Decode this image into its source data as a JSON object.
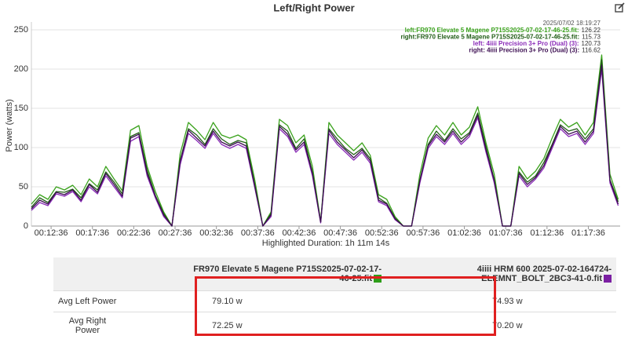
{
  "chart_data": {
    "type": "line",
    "title": "Left/Right Power",
    "y_label": "Power (watts)",
    "x_label": "Highlighted Duration: 1h 11m 14s",
    "tooltip_time": "2025/07/02 18:19:27",
    "x": [
      613,
      673,
      733,
      793,
      853,
      913,
      973,
      1033,
      1093,
      1153,
      1213,
      1273,
      1333,
      1393,
      1453,
      1513,
      1573,
      1633,
      1693,
      1753,
      1813,
      1873,
      1933,
      1993,
      2053,
      2113,
      2173,
      2233,
      2293,
      2353,
      2413,
      2473,
      2533,
      2593,
      2653,
      2713,
      2773,
      2833,
      2893,
      2953,
      3013,
      3073,
      3133,
      3193,
      3253,
      3313,
      3373,
      3433,
      3493,
      3553,
      3613,
      3673,
      3733,
      3793,
      3853,
      3913,
      3973,
      4033,
      4093,
      4153,
      4213,
      4273,
      4333,
      4393,
      4453,
      4513,
      4573,
      4633,
      4693,
      4753,
      4813,
      4873
    ],
    "series": [
      {
        "name": "left:FR970 Elevate 5 Magene P715S2025-07-02-17-46-25.fit:",
        "tooltip_value": 126.22,
        "color": "#3aa21c",
        "values": [
          28,
          40,
          34,
          50,
          46,
          52,
          40,
          60,
          50,
          76,
          60,
          45,
          122,
          128,
          76,
          44,
          18,
          0,
          92,
          132,
          122,
          110,
          132,
          116,
          112,
          116,
          110,
          60,
          0,
          18,
          136,
          128,
          106,
          116,
          76,
          6,
          132,
          116,
          106,
          96,
          106,
          90,
          40,
          34,
          12,
          0,
          0,
          66,
          112,
          128,
          116,
          132,
          116,
          126,
          152,
          106,
          66,
          0,
          0,
          76,
          60,
          70,
          86,
          112,
          136,
          126,
          132,
          116,
          132,
          218,
          66,
          34
        ]
      },
      {
        "name": "right:FR970 Elevate 5 Magene P715S2025-07-02-17-46-25.fit:",
        "tooltip_value": 115.73,
        "color": "#1f5c14",
        "values": [
          24,
          36,
          30,
          44,
          43,
          47,
          36,
          54,
          46,
          69,
          56,
          41,
          114,
          119,
          71,
          39,
          16,
          0,
          84,
          124,
          116,
          104,
          124,
          111,
          104,
          109,
          106,
          54,
          0,
          16,
          129,
          121,
          99,
          111,
          69,
          5,
          124,
          111,
          99,
          91,
          99,
          86,
          36,
          29,
          10,
          0,
          0,
          59,
          104,
          121,
          109,
          124,
          111,
          119,
          144,
          101,
          59,
          0,
          0,
          69,
          56,
          64,
          81,
          104,
          129,
          121,
          124,
          111,
          124,
          212,
          59,
          31
        ]
      },
      {
        "name": "left: 4iiii Precision 3+ Pro (Dual) (3):",
        "tooltip_value": 120.73,
        "color": "#8a2bb8",
        "values": [
          20,
          30,
          26,
          41,
          38,
          44,
          31,
          50,
          41,
          64,
          50,
          36,
          108,
          114,
          64,
          36,
          12,
          0,
          78,
          118,
          109,
          99,
          118,
          104,
          99,
          104,
          99,
          50,
          0,
          12,
          124,
          114,
          94,
          104,
          64,
          4,
          118,
          104,
          94,
          84,
          94,
          80,
          31,
          26,
          8,
          0,
          0,
          55,
          99,
          114,
          104,
          118,
          104,
          114,
          138,
          94,
          55,
          0,
          0,
          64,
          50,
          60,
          74,
          99,
          124,
          114,
          118,
          104,
          118,
          200,
          55,
          26
        ]
      },
      {
        "name": "right: 4iiii Precision 3+ Pro (Dual) (3):",
        "tooltip_value": 116.62,
        "color": "#3d0f52",
        "values": [
          22,
          33,
          28,
          43,
          40,
          46,
          33,
          53,
          43,
          67,
          53,
          38,
          112,
          117,
          67,
          38,
          14,
          0,
          82,
          122,
          112,
          102,
          121,
          107,
          102,
          107,
          102,
          52,
          0,
          14,
          127,
          117,
          97,
          107,
          67,
          5,
          122,
          107,
          97,
          87,
          97,
          83,
          33,
          28,
          9,
          0,
          0,
          58,
          102,
          117,
          107,
          121,
          107,
          117,
          141,
          97,
          58,
          0,
          0,
          67,
          53,
          62,
          77,
          102,
          127,
          117,
          121,
          107,
          121,
          205,
          58,
          28
        ]
      }
    ],
    "xlim": [
      613,
      4887
    ],
    "xticks": [
      {
        "value": 756,
        "label": "00:12:36"
      },
      {
        "value": 1056,
        "label": "00:17:36"
      },
      {
        "value": 1356,
        "label": "00:22:36"
      },
      {
        "value": 1656,
        "label": "00:27:36"
      },
      {
        "value": 1956,
        "label": "00:32:36"
      },
      {
        "value": 2256,
        "label": "00:37:36"
      },
      {
        "value": 2556,
        "label": "00:42:36"
      },
      {
        "value": 2856,
        "label": "00:47:36"
      },
      {
        "value": 3156,
        "label": "00:52:36"
      },
      {
        "value": 3456,
        "label": "00:57:36"
      },
      {
        "value": 3756,
        "label": "01:02:36"
      },
      {
        "value": 4056,
        "label": "01:07:36"
      },
      {
        "value": 4356,
        "label": "01:12:36"
      },
      {
        "value": 4656,
        "label": "01:17:36"
      }
    ],
    "ylim": [
      0,
      260
    ],
    "yticks": [
      0,
      50,
      100,
      150,
      200,
      250
    ],
    "grid": true
  },
  "table": {
    "header": [
      "FR970 Elevate 5 Magene P715S2025-07-02-17-46-25.fit",
      "4iiii HRM 600 2025-07-02-164724-ELEMNT_BOLT_2BC3-41-0.fit"
    ],
    "header_colors": [
      "#2e9e1a",
      "#7b1fa2"
    ],
    "rows": [
      [
        "Avg Left Power",
        "79.10 w",
        "74.93 w"
      ],
      [
        "Avg Right Power",
        "72.25 w",
        "70.20 w"
      ]
    ]
  }
}
